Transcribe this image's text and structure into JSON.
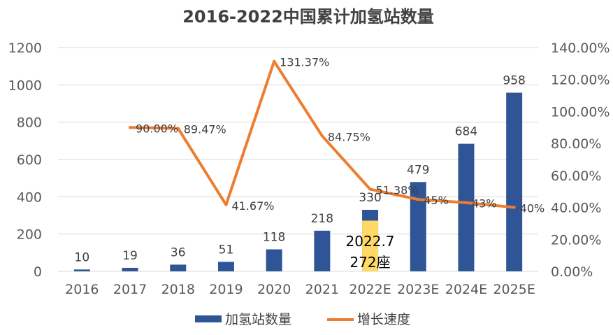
{
  "chart_data": {
    "type": "bar",
    "title": "2016-2022中国累计加氢站数量",
    "categories": [
      "2016",
      "2017",
      "2018",
      "2019",
      "2020",
      "2021",
      "2022E",
      "2023E",
      "2024E",
      "2025E"
    ],
    "ylim": [
      0,
      1200
    ],
    "y_ticks": [
      "0",
      "200",
      "400",
      "600",
      "800",
      "1000",
      "1200"
    ],
    "y2lim": [
      0,
      140
    ],
    "y2_ticks": [
      "0.00%",
      "20.00%",
      "40.00%",
      "60.00%",
      "80.00%",
      "100.00%",
      "120.00%",
      "140.00%"
    ],
    "grid": true,
    "legend_position": "bottom",
    "series": [
      {
        "name": "加氢站数量",
        "type": "bar",
        "axis": "left",
        "color": "#2f5597",
        "values": [
          10,
          19,
          36,
          51,
          118,
          218,
          330,
          479,
          684,
          958
        ],
        "labels": [
          "10",
          "19",
          "36",
          "51",
          "118",
          "218",
          "330",
          "479",
          "684",
          "958"
        ]
      },
      {
        "name": "增长速度",
        "type": "line",
        "axis": "right",
        "color": "#ed7d31",
        "values": [
          null,
          90.0,
          89.47,
          41.67,
          131.37,
          84.75,
          51.38,
          45,
          43,
          40
        ],
        "labels": [
          "",
          "90.00%",
          "89.47%",
          "41.67%",
          "131.37%",
          "84.75%",
          "51.38%",
          "45%",
          "43%",
          "40%"
        ]
      }
    ],
    "annotation": {
      "category": "2022E",
      "value": 272,
      "color": "#ffd966",
      "lines": [
        "2022.7",
        "272座"
      ]
    }
  }
}
